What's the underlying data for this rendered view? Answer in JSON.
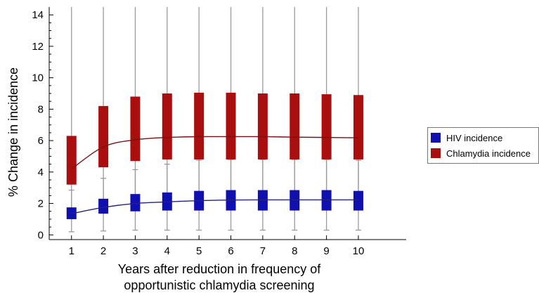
{
  "chart_data": {
    "type": "box",
    "title": "",
    "xlabel_line1": "Years after reduction in frequency of",
    "xlabel_line2": "opportunistic chlamydia screening",
    "ylabel": "% Change in incidence",
    "x": [
      1,
      2,
      3,
      4,
      5,
      6,
      7,
      8,
      9,
      10
    ],
    "xlim": [
      0.3,
      11.5
    ],
    "ylim": [
      -0.3,
      14.5
    ],
    "yticks": [
      0,
      2,
      4,
      6,
      8,
      10,
      12,
      14
    ],
    "grid": false,
    "legend_position": "right",
    "series": [
      {
        "name": "Chlamydia incidence",
        "color": "#aa0f0f",
        "whisker_low": [
          1.4,
          1.9,
          2.1,
          2.2,
          2.2,
          2.2,
          2.2,
          2.2,
          2.2,
          2.2
        ],
        "q1": [
          3.2,
          4.3,
          4.7,
          4.8,
          4.8,
          4.8,
          4.8,
          4.8,
          4.8,
          4.8
        ],
        "median": [
          4.2,
          5.6,
          6.05,
          6.2,
          6.25,
          6.25,
          6.25,
          6.22,
          6.2,
          6.18
        ],
        "q3": [
          6.3,
          8.2,
          8.8,
          9.0,
          9.05,
          9.05,
          9.0,
          9.0,
          8.95,
          8.9
        ],
        "whisker_high": [
          14.5,
          14.5,
          14.5,
          14.5,
          14.5,
          14.5,
          14.5,
          14.5,
          14.5,
          14.5
        ]
      },
      {
        "name": "HIV incidence",
        "color": "#1010b0",
        "whisker_low": [
          0.2,
          0.25,
          0.3,
          0.3,
          0.3,
          0.3,
          0.3,
          0.3,
          0.3,
          0.3
        ],
        "q1": [
          1.0,
          1.35,
          1.5,
          1.55,
          1.55,
          1.55,
          1.55,
          1.55,
          1.55,
          1.55
        ],
        "median": [
          1.35,
          1.75,
          2.0,
          2.1,
          2.18,
          2.22,
          2.23,
          2.23,
          2.23,
          2.23
        ],
        "q3": [
          1.75,
          2.3,
          2.6,
          2.7,
          2.8,
          2.85,
          2.85,
          2.85,
          2.85,
          2.8
        ],
        "whisker_high": [
          2.85,
          3.6,
          4.15,
          4.5,
          4.75,
          4.8,
          4.8,
          4.8,
          4.8,
          4.75
        ]
      }
    ]
  },
  "legend": {
    "items": [
      {
        "label": "HIV incidence",
        "color": "#1010b0"
      },
      {
        "label": "Chlamydia incidence",
        "color": "#aa0f0f"
      }
    ]
  }
}
